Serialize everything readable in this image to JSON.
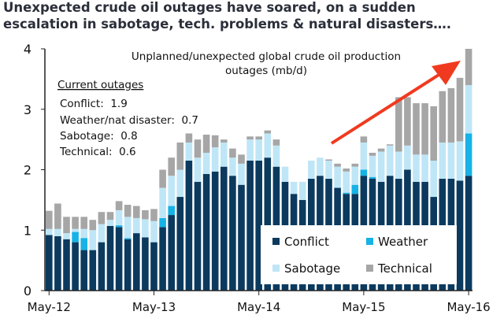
{
  "title_line1": "Unexpected crude oil outages have soared, on a sudden",
  "title_line2": "escalation in sabotage, tech. problems & natural disasters….",
  "chart_data": {
    "type": "bar",
    "stacked": true,
    "subtitle_line1": "Unplanned/unexpected global crude oil production",
    "subtitle_line2": "outages (mb/d)",
    "ylim": [
      0,
      4
    ],
    "yticks": [
      "0",
      "1",
      "2",
      "3",
      "4"
    ],
    "xtick_labels": [
      "May-12",
      "May-13",
      "May-14",
      "May-15",
      "May-16"
    ],
    "xtick_index": [
      0,
      12,
      24,
      36,
      48
    ],
    "legend_position": "bottom-right",
    "colors": {
      "Conflict": "#0b3a5e",
      "Weather": "#17b2e6",
      "Sabotage": "#bfe6f6",
      "Technical": "#a6a6a6"
    },
    "series": [
      {
        "name": "Conflict",
        "values": [
          0.92,
          0.9,
          0.85,
          0.8,
          0.67,
          0.67,
          0.8,
          1.07,
          1.05,
          0.85,
          0.95,
          0.88,
          0.8,
          1.05,
          1.25,
          1.55,
          2.15,
          1.8,
          1.93,
          1.97,
          2.05,
          1.9,
          1.75,
          2.15,
          2.15,
          2.2,
          2.05,
          1.8,
          1.6,
          1.5,
          1.85,
          1.9,
          1.85,
          1.7,
          1.6,
          1.6,
          1.9,
          1.85,
          1.8,
          1.9,
          1.85,
          2.0,
          1.8,
          1.8,
          1.55,
          1.85,
          1.85,
          1.82,
          1.9
        ]
      },
      {
        "name": "Weather",
        "values": [
          0,
          0,
          0,
          0.17,
          0.2,
          0,
          0,
          0,
          0.03,
          0.02,
          0,
          0,
          0,
          0.15,
          0.15,
          0,
          0,
          0,
          0,
          0,
          0,
          0,
          0,
          0,
          0,
          0,
          0,
          0,
          0,
          0,
          0,
          0,
          0,
          0,
          0.02,
          0.15,
          0.1,
          0.03,
          0,
          0,
          0,
          0,
          0,
          0,
          0,
          0,
          0,
          0,
          0.7
        ]
      },
      {
        "name": "Sabotage",
        "values": [
          0.1,
          0.12,
          0.1,
          0.05,
          0.15,
          0.33,
          0.3,
          0.1,
          0.25,
          0.35,
          0.25,
          0.3,
          0.35,
          0.5,
          0.5,
          0.45,
          0.3,
          0.4,
          0.35,
          0.4,
          0.4,
          0.3,
          0.35,
          0.35,
          0.35,
          0.4,
          0.35,
          0.25,
          0.2,
          0.3,
          0.3,
          0.3,
          0.3,
          0.35,
          0.35,
          0.3,
          0.45,
          0.35,
          0.5,
          0.5,
          0.45,
          0.4,
          0.45,
          0.45,
          0.6,
          0.6,
          0.6,
          0.65,
          0.8
        ]
      },
      {
        "name": "Technical",
        "values": [
          0.3,
          0.42,
          0.27,
          0.2,
          0.2,
          0.17,
          0.2,
          0.13,
          0.15,
          0.2,
          0.2,
          0.15,
          0.2,
          0.3,
          0.3,
          0.45,
          0.15,
          0.3,
          0.3,
          0.2,
          0.05,
          0.15,
          0.15,
          0.05,
          0.05,
          0.05,
          0.1,
          0,
          0,
          0,
          0,
          0,
          0.02,
          0.05,
          0.05,
          0.05,
          0.1,
          0.05,
          0.05,
          0.02,
          0.9,
          0.8,
          0.85,
          0.85,
          0.9,
          0.85,
          0.9,
          1.05,
          0.6
        ]
      }
    ],
    "current_outages": {
      "heading": "Current outages",
      "lines": [
        "Conflict:  1.9",
        "Weather/nat disaster:  0.7",
        "Sabotage:  0.8",
        "Technical:  0.6"
      ]
    }
  }
}
